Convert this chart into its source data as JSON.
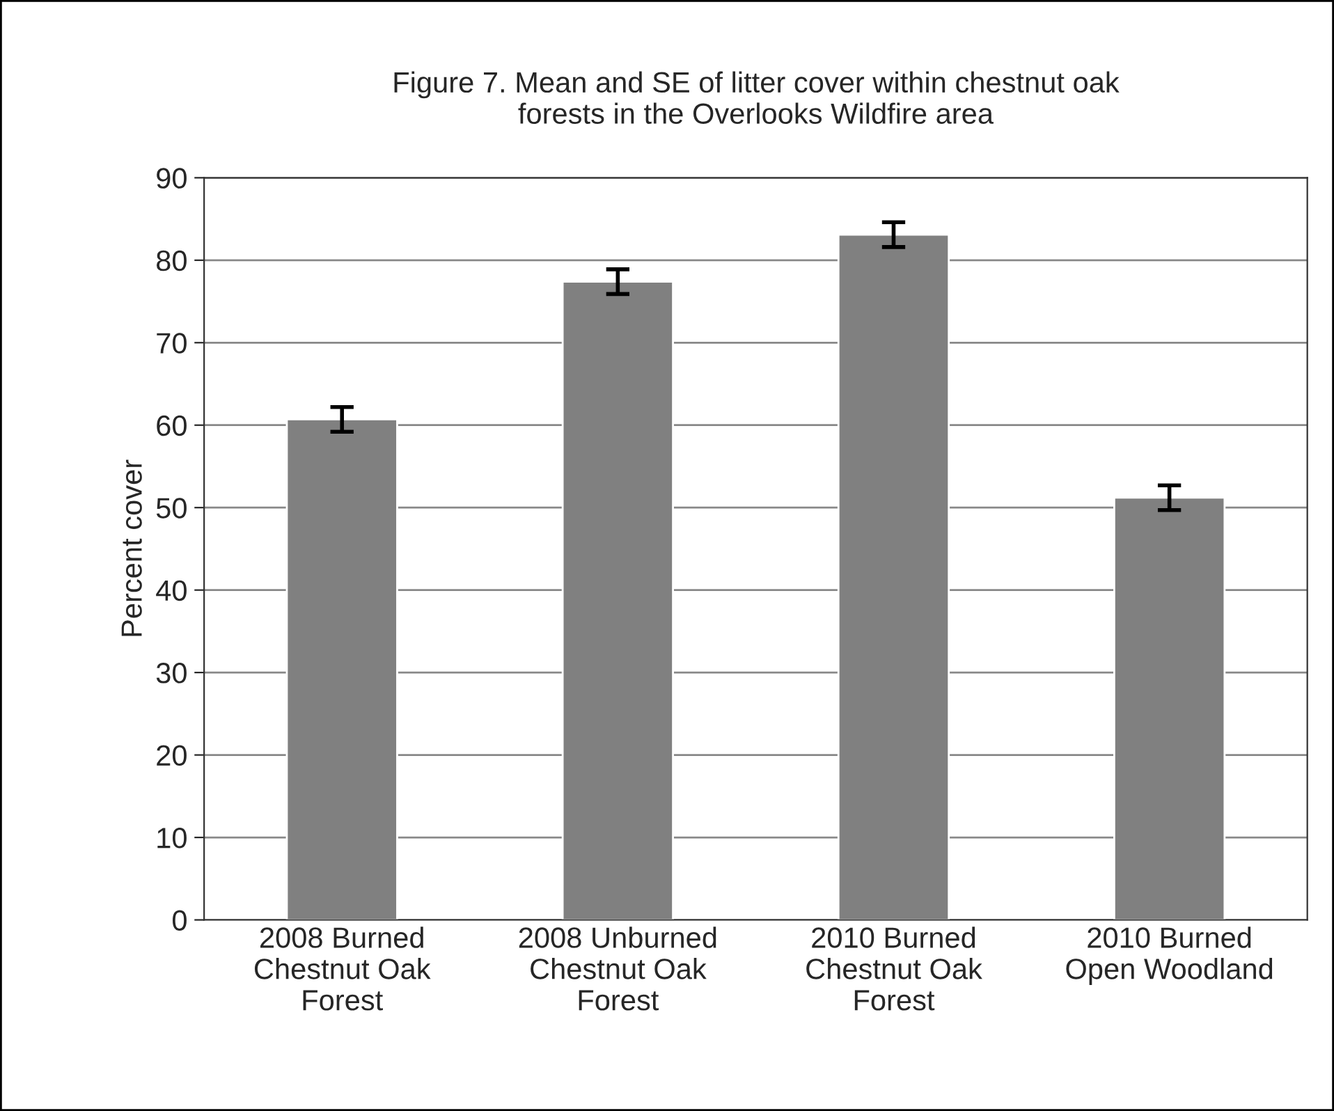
{
  "chart_data": {
    "type": "bar",
    "title": "Figure 7. Mean and SE of litter cover within chestnut oak\nforests in the Overlooks Wildfire area",
    "ylabel": "Percent cover",
    "categories": [
      "2008 Burned\nChestnut Oak\nForest",
      "2008 Unburned\nChestnut Oak\nForest",
      "2010 Burned\nChestnut Oak\nForest",
      "2010 Burned\nOpen Woodland"
    ],
    "values": [
      60.7,
      77.4,
      83.1,
      51.2
    ],
    "errors": [
      1.5,
      1.5,
      1.5,
      1.5
    ],
    "color": "#808080",
    "ylim": [
      0,
      90
    ],
    "yticks": [
      0,
      10,
      20,
      30,
      40,
      50,
      60,
      70,
      80,
      90
    ],
    "grid": "y",
    "legend": false
  }
}
